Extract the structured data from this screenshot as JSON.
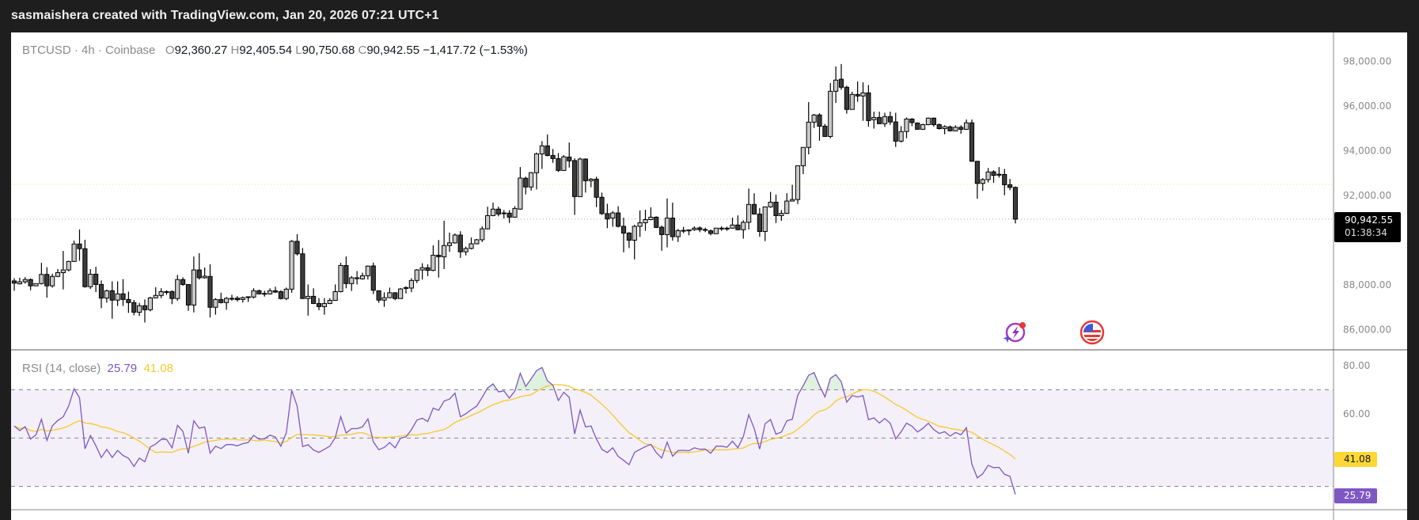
{
  "header": {
    "title": "sasmaishera created with TradingView.com, Jan 20, 2026 07:21 UTC+1"
  },
  "legend": {
    "symbol": "BTCUSD · 4h · Coinbase",
    "open_label": "O",
    "open": "92,360.27",
    "high_label": "H",
    "high": "92,405.54",
    "low_label": "L",
    "low": "90,750.68",
    "close_label": "C",
    "close": "90,942.55",
    "change": "−1,417.72 (−1.53%)"
  },
  "price_axis": {
    "ticks": [
      "98,000.00",
      "96,000.00",
      "94,000.00",
      "92,000.00",
      "88,000.00",
      "86,000.00"
    ],
    "last_price": "90,942.55",
    "countdown": "01:38:34"
  },
  "rsi": {
    "label": "RSI (14, close)",
    "value": "25.79",
    "ma_value": "41.08",
    "ticks": [
      "80.00",
      "60.00"
    ],
    "levels": [
      70,
      50,
      30
    ]
  },
  "colors": {
    "bull": "#c9c9c9",
    "bear": "#3b3b3b",
    "outline": "#000000",
    "rsi_line": "#7e57c2",
    "rsi_ma": "#f7c92b",
    "rsi_band": "#7e57c2",
    "ma_tag": "#fdd835",
    "rsi_tag": "#7e57c2",
    "topbar": "#1e1e1e"
  },
  "events": [
    {
      "icon": "lightning-sparkle-icon"
    },
    {
      "icon": "us-flag-icon"
    }
  ],
  "chart_data": {
    "type": "candlestick",
    "symbol": "BTCUSD",
    "interval": "4h",
    "exchange": "Coinbase",
    "ylim": [
      85500,
      99400
    ],
    "y_ticks": [
      86000,
      88000,
      92000,
      94000,
      96000,
      98000
    ],
    "reference_line": 92500,
    "last_price_line": 90942.55,
    "columns": [
      "open",
      "high",
      "low",
      "close"
    ],
    "candles": [
      [
        88180,
        88300,
        87740,
        88080
      ],
      [
        88050,
        88320,
        88020,
        88140
      ],
      [
        88140,
        88350,
        88060,
        88240
      ],
      [
        88240,
        88290,
        87760,
        87960
      ],
      [
        87960,
        88070,
        87950,
        88060
      ],
      [
        88060,
        88990,
        88020,
        88470
      ],
      [
        88470,
        88790,
        87430,
        87960
      ],
      [
        87960,
        88500,
        87880,
        88380
      ],
      [
        88380,
        88710,
        88350,
        88550
      ],
      [
        88550,
        89520,
        87800,
        88670
      ],
      [
        88670,
        89080,
        88610,
        89050
      ],
      [
        89050,
        89980,
        89030,
        89830
      ],
      [
        89830,
        90480,
        89080,
        89620
      ],
      [
        89620,
        90020,
        87880,
        87920
      ],
      [
        87920,
        88710,
        87820,
        88480
      ],
      [
        88480,
        88810,
        87680,
        88020
      ],
      [
        88020,
        88200,
        86960,
        87410
      ],
      [
        87410,
        87790,
        87210,
        87740
      ],
      [
        87740,
        88160,
        86490,
        87320
      ],
      [
        87320,
        88160,
        87060,
        87600
      ],
      [
        87600,
        88260,
        87060,
        87350
      ],
      [
        87350,
        87700,
        86750,
        87210
      ],
      [
        87210,
        87330,
        86640,
        86780
      ],
      [
        86780,
        87200,
        86610,
        87070
      ],
      [
        87070,
        87350,
        86320,
        86890
      ],
      [
        86890,
        87470,
        86820,
        87420
      ],
      [
        87420,
        87900,
        87410,
        87530
      ],
      [
        87530,
        87850,
        87410,
        87700
      ],
      [
        87680,
        87760,
        87560,
        87700
      ],
      [
        87700,
        87760,
        87140,
        87390
      ],
      [
        87390,
        88450,
        87290,
        88240
      ],
      [
        88240,
        88340,
        87960,
        88020
      ],
      [
        88020,
        88020,
        86840,
        87100
      ],
      [
        87100,
        89270,
        86770,
        88670
      ],
      [
        88670,
        89420,
        88240,
        88320
      ],
      [
        88320,
        88780,
        88280,
        88390
      ],
      [
        88380,
        88920,
        86540,
        87000
      ],
      [
        87000,
        87410,
        86670,
        87350
      ],
      [
        87350,
        87650,
        87170,
        87210
      ],
      [
        87210,
        87460,
        86890,
        87400
      ],
      [
        87380,
        87560,
        87290,
        87400
      ],
      [
        87410,
        87500,
        87260,
        87340
      ],
      [
        87350,
        87480,
        87210,
        87430
      ],
      [
        87450,
        87470,
        87240,
        87470
      ],
      [
        87460,
        87850,
        87390,
        87740
      ],
      [
        87740,
        87790,
        87570,
        87600
      ],
      [
        87600,
        87740,
        87480,
        87620
      ],
      [
        87600,
        87850,
        87570,
        87740
      ],
      [
        87740,
        87920,
        87640,
        87680
      ],
      [
        87700,
        87760,
        87350,
        87390
      ],
      [
        87390,
        87880,
        87320,
        87810
      ],
      [
        87810,
        90010,
        87650,
        89950
      ],
      [
        89950,
        90270,
        89320,
        89390
      ],
      [
        89390,
        89650,
        87390,
        87390
      ],
      [
        87390,
        88020,
        86630,
        87490
      ],
      [
        87490,
        87850,
        87140,
        87170
      ],
      [
        87170,
        87410,
        86870,
        87030
      ],
      [
        87030,
        87410,
        86670,
        87170
      ],
      [
        87170,
        87410,
        87140,
        87310
      ],
      [
        87310,
        88020,
        87290,
        87700
      ],
      [
        87700,
        88990,
        87670,
        88870
      ],
      [
        88870,
        89270,
        87850,
        88060
      ],
      [
        88060,
        88400,
        87730,
        88320
      ],
      [
        88280,
        88620,
        88020,
        88320
      ],
      [
        88270,
        88550,
        88240,
        88410
      ],
      [
        88410,
        88870,
        88240,
        88840
      ],
      [
        88850,
        89000,
        87590,
        87760
      ],
      [
        87740,
        87760,
        87200,
        87320
      ],
      [
        87320,
        87670,
        87020,
        87430
      ],
      [
        87430,
        87880,
        87410,
        87650
      ],
      [
        87650,
        87670,
        87320,
        87390
      ],
      [
        87390,
        87860,
        87390,
        87820
      ],
      [
        87860,
        87940,
        87620,
        87880
      ],
      [
        87860,
        88300,
        87680,
        88200
      ],
      [
        88200,
        88710,
        88080,
        88670
      ],
      [
        88670,
        88970,
        88240,
        88770
      ],
      [
        88770,
        88920,
        88390,
        88650
      ],
      [
        88650,
        89770,
        88610,
        89330
      ],
      [
        89330,
        90010,
        88330,
        89260
      ],
      [
        89260,
        90870,
        88710,
        89760
      ],
      [
        89760,
        90340,
        89480,
        89880
      ],
      [
        89880,
        90300,
        89850,
        90230
      ],
      [
        90230,
        90400,
        89210,
        89480
      ],
      [
        89480,
        89710,
        89320,
        89630
      ],
      [
        89630,
        90120,
        89590,
        89840
      ],
      [
        89840,
        90060,
        89820,
        90020
      ],
      [
        90020,
        90620,
        89920,
        90510
      ],
      [
        90510,
        91500,
        90480,
        91100
      ],
      [
        91100,
        91680,
        91070,
        91390
      ],
      [
        91390,
        91500,
        91070,
        91170
      ],
      [
        91210,
        91350,
        90970,
        91220
      ],
      [
        91210,
        91340,
        90770,
        91030
      ],
      [
        91030,
        91520,
        91010,
        91420
      ],
      [
        91390,
        93270,
        91360,
        92780
      ],
      [
        92770,
        92840,
        92050,
        92380
      ],
      [
        92380,
        93050,
        92220,
        93020
      ],
      [
        93020,
        93920,
        92270,
        93860
      ],
      [
        93860,
        94430,
        93190,
        94220
      ],
      [
        94220,
        94730,
        93750,
        93790
      ],
      [
        93790,
        94080,
        93460,
        93650
      ],
      [
        93650,
        93900,
        93050,
        93120
      ],
      [
        93120,
        93810,
        93100,
        93730
      ],
      [
        93720,
        94370,
        93250,
        93550
      ],
      [
        93560,
        93660,
        91130,
        91950
      ],
      [
        91950,
        93690,
        91950,
        93630
      ],
      [
        93630,
        93660,
        92130,
        92660
      ],
      [
        92660,
        92780,
        92370,
        92730
      ],
      [
        92730,
        92840,
        91480,
        91920
      ],
      [
        91920,
        92130,
        91130,
        91190
      ],
      [
        91190,
        91630,
        90540,
        90950
      ],
      [
        90990,
        91300,
        90600,
        91220
      ],
      [
        91220,
        91520,
        90570,
        90620
      ],
      [
        90620,
        91010,
        89460,
        90320
      ],
      [
        90320,
        90360,
        89650,
        90000
      ],
      [
        90000,
        90690,
        89140,
        90620
      ],
      [
        90620,
        91330,
        90150,
        90780
      ],
      [
        90780,
        91360,
        90420,
        90920
      ],
      [
        90920,
        91470,
        90890,
        91030
      ],
      [
        91030,
        91070,
        90540,
        90570
      ],
      [
        90580,
        90660,
        89530,
        90250
      ],
      [
        90250,
        91870,
        89680,
        90990
      ],
      [
        90990,
        91680,
        89980,
        90160
      ],
      [
        90160,
        90500,
        89920,
        90430
      ],
      [
        90430,
        90600,
        90320,
        90440
      ],
      [
        90460,
        90480,
        90220,
        90420
      ],
      [
        90470,
        90620,
        90420,
        90540
      ],
      [
        90550,
        90620,
        90360,
        90470
      ],
      [
        90460,
        90560,
        90360,
        90480
      ],
      [
        90420,
        90480,
        90220,
        90300
      ],
      [
        90290,
        90540,
        90290,
        90540
      ],
      [
        90510,
        90620,
        90420,
        90540
      ],
      [
        90540,
        90600,
        90420,
        90500
      ],
      [
        90540,
        91010,
        90510,
        90680
      ],
      [
        90680,
        91110,
        90440,
        90470
      ],
      [
        90470,
        90890,
        90070,
        90800
      ],
      [
        90800,
        92310,
        90480,
        91600
      ],
      [
        91600,
        92100,
        91150,
        91170
      ],
      [
        91170,
        91440,
        90160,
        90390
      ],
      [
        90390,
        91490,
        89960,
        91490
      ],
      [
        91490,
        92160,
        91450,
        91700
      ],
      [
        91700,
        92040,
        90770,
        91100
      ],
      [
        91100,
        91350,
        90870,
        91200
      ],
      [
        91200,
        92100,
        91170,
        91750
      ],
      [
        91750,
        92480,
        91750,
        91820
      ],
      [
        91820,
        93330,
        91620,
        93330
      ],
      [
        93330,
        94150,
        92960,
        94150
      ],
      [
        94150,
        96180,
        93840,
        95280
      ],
      [
        95280,
        95650,
        95020,
        95600
      ],
      [
        95600,
        95680,
        94450,
        95100
      ],
      [
        95100,
        95200,
        94620,
        94640
      ],
      [
        94640,
        97030,
        94560,
        96660
      ],
      [
        96660,
        97770,
        96140,
        97160
      ],
      [
        97200,
        97880,
        96730,
        96840
      ],
      [
        96840,
        96910,
        95660,
        95850
      ],
      [
        95850,
        96640,
        95850,
        96520
      ],
      [
        96520,
        97100,
        96190,
        96450
      ],
      [
        96450,
        97060,
        95340,
        96590
      ],
      [
        96590,
        96940,
        95080,
        95350
      ],
      [
        95390,
        95750,
        94990,
        95490
      ],
      [
        95490,
        95750,
        95190,
        95210
      ],
      [
        95210,
        95700,
        95070,
        95530
      ],
      [
        95530,
        95750,
        95160,
        95290
      ],
      [
        95290,
        95700,
        94170,
        94430
      ],
      [
        94430,
        95100,
        94370,
        94860
      ],
      [
        94860,
        95490,
        94560,
        95420
      ],
      [
        95420,
        95460,
        95100,
        95260
      ],
      [
        95240,
        95270,
        94950,
        94960
      ],
      [
        94960,
        95210,
        94930,
        95170
      ],
      [
        95170,
        95490,
        95140,
        95460
      ],
      [
        95460,
        95490,
        95080,
        95170
      ],
      [
        95170,
        95220,
        94950,
        94990
      ],
      [
        94990,
        95140,
        94740,
        95080
      ],
      [
        95070,
        95130,
        94870,
        94890
      ],
      [
        94890,
        95140,
        94870,
        95050
      ],
      [
        95050,
        95140,
        94760,
        94960
      ],
      [
        94960,
        95400,
        94940,
        95250
      ],
      [
        95250,
        95400,
        93510,
        93530
      ],
      [
        93530,
        93530,
        91860,
        92540
      ],
      [
        92540,
        92780,
        92210,
        92710
      ],
      [
        92710,
        93230,
        92580,
        93050
      ],
      [
        93060,
        93130,
        92570,
        92900
      ],
      [
        92950,
        93270,
        92800,
        92910
      ],
      [
        92940,
        93190,
        92010,
        92480
      ],
      [
        92480,
        92740,
        92240,
        92360
      ],
      [
        92360.27,
        92405.54,
        90750.68,
        90942.55
      ]
    ],
    "rsi": {
      "period": 14,
      "source": "close",
      "ma_period": 14,
      "last": 25.79,
      "ma_last": 41.08,
      "ylim": [
        20,
        86
      ]
    }
  }
}
